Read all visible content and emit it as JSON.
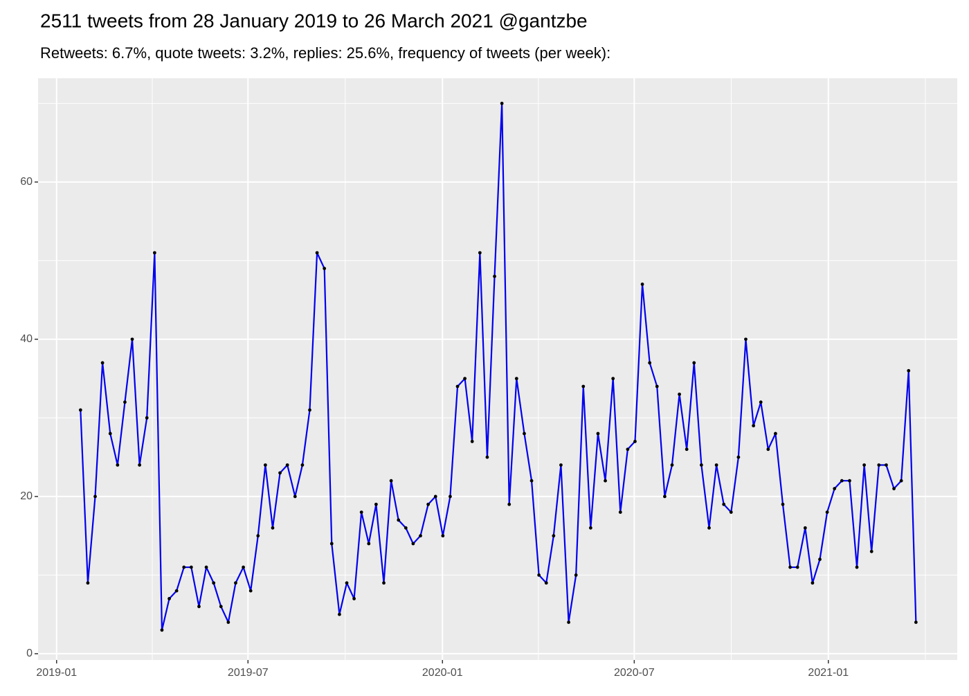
{
  "chart_data": {
    "type": "line",
    "title": "2511 tweets from 28 January 2019 to 26 March 2021 @gantzbe",
    "subtitle": "Retweets: 6.7%, quote tweets: 3.2%, replies: 25.6%, frequency of tweets (per week):",
    "x": [
      2019.062,
      2019.081,
      2019.1,
      2019.119,
      2019.139,
      2019.158,
      2019.177,
      2019.196,
      2019.215,
      2019.234,
      2019.254,
      2019.273,
      2019.292,
      2019.311,
      2019.33,
      2019.349,
      2019.369,
      2019.388,
      2019.407,
      2019.426,
      2019.445,
      2019.464,
      2019.484,
      2019.503,
      2019.522,
      2019.541,
      2019.56,
      2019.579,
      2019.598,
      2019.618,
      2019.637,
      2019.656,
      2019.675,
      2019.694,
      2019.713,
      2019.733,
      2019.752,
      2019.771,
      2019.79,
      2019.809,
      2019.828,
      2019.848,
      2019.867,
      2019.886,
      2019.905,
      2019.924,
      2019.943,
      2019.963,
      2019.982,
      2020.001,
      2020.02,
      2020.039,
      2020.058,
      2020.077,
      2020.097,
      2020.116,
      2020.135,
      2020.154,
      2020.173,
      2020.192,
      2020.212,
      2020.231,
      2020.25,
      2020.269,
      2020.288,
      2020.307,
      2020.327,
      2020.346,
      2020.365,
      2020.384,
      2020.403,
      2020.422,
      2020.442,
      2020.461,
      2020.48,
      2020.499,
      2020.518,
      2020.537,
      2020.556,
      2020.576,
      2020.595,
      2020.614,
      2020.633,
      2020.652,
      2020.671,
      2020.691,
      2020.71,
      2020.729,
      2020.748,
      2020.767,
      2020.786,
      2020.806,
      2020.825,
      2020.844,
      2020.863,
      2020.882,
      2020.901,
      2020.92,
      2020.94,
      2020.959,
      2020.978,
      2020.997,
      2021.016,
      2021.035,
      2021.055,
      2021.074,
      2021.093,
      2021.112,
      2021.131,
      2021.15,
      2021.17,
      2021.189,
      2021.208,
      2021.227
    ],
    "values": [
      31,
      9,
      20,
      37,
      28,
      24,
      32,
      40,
      24,
      30,
      51,
      3,
      7,
      8,
      11,
      11,
      6,
      11,
      9,
      6,
      4,
      9,
      11,
      8,
      15,
      24,
      16,
      23,
      24,
      20,
      24,
      31,
      51,
      49,
      14,
      5,
      9,
      7,
      18,
      14,
      19,
      9,
      22,
      17,
      16,
      14,
      15,
      19,
      20,
      15,
      20,
      34,
      35,
      27,
      51,
      25,
      48,
      70,
      19,
      35,
      28,
      22,
      10,
      9,
      15,
      24,
      4,
      10,
      34,
      16,
      28,
      22,
      35,
      18,
      26,
      27,
      47,
      37,
      34,
      20,
      24,
      33,
      26,
      37,
      24,
      16,
      24,
      19,
      18,
      25,
      40,
      29,
      32,
      26,
      28,
      19,
      11,
      11,
      16,
      9,
      12,
      18,
      21,
      22,
      22,
      11,
      24,
      13,
      24,
      24,
      21,
      22,
      36,
      4
    ],
    "color": "#0000ee",
    "point_color": "#000000",
    "xlim": [
      2018.952,
      2021.334
    ],
    "xticks": [
      {
        "value": 2019.0,
        "label": "2019-01"
      },
      {
        "value": 2019.496,
        "label": "2019-07"
      },
      {
        "value": 2020.0,
        "label": "2020-01"
      },
      {
        "value": 2020.497,
        "label": "2020-07"
      },
      {
        "value": 2021.0,
        "label": "2021-01"
      }
    ],
    "ylim": [
      -0.8,
      73.2
    ],
    "yticks": [
      0,
      20,
      40,
      60
    ],
    "grid": true
  }
}
